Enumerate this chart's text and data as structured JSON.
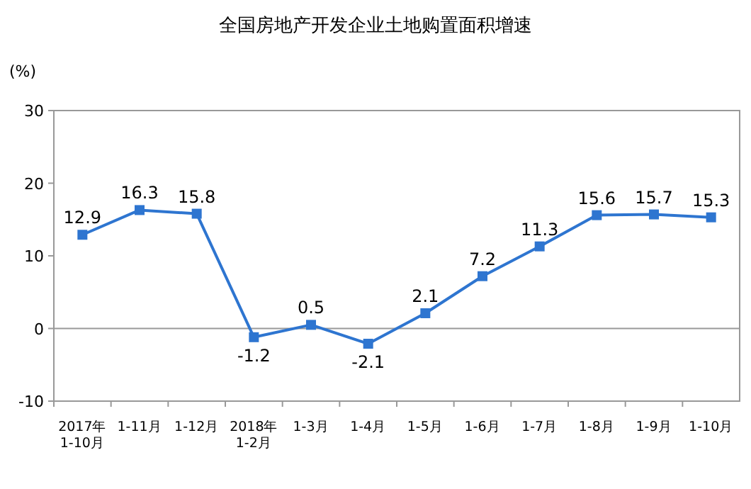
{
  "chart_data": {
    "type": "line",
    "title": "全国房地产开发企业土地购置面积增速",
    "ylabel": "(%)",
    "categories": [
      "2017年\n1-10月",
      "1-11月",
      "1-12月",
      "2018年\n1-2月",
      "1-3月",
      "1-4月",
      "1-5月",
      "1-6月",
      "1-7月",
      "1-8月",
      "1-9月",
      "1-10月"
    ],
    "series": [
      {
        "color": "#2e75d0",
        "values": [
          12.9,
          16.3,
          15.8,
          -1.2,
          0.5,
          -2.1,
          2.1,
          7.2,
          11.3,
          15.6,
          15.7,
          15.3
        ]
      }
    ],
    "ylim": [
      -10,
      30
    ],
    "yticks": [
      -10,
      0,
      10,
      20,
      30
    ],
    "marker": "square",
    "line_style": "solid",
    "data_labels": true
  }
}
